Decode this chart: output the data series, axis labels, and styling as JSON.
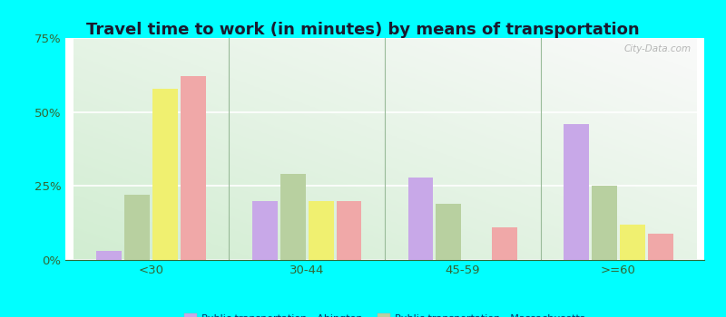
{
  "title": "Travel time to work (in minutes) by means of transportation",
  "categories": [
    "<30",
    "30-44",
    "45-59",
    ">=60"
  ],
  "series": {
    "Public transportation - Abington": [
      3,
      20,
      28,
      46
    ],
    "Public transportation - Massachusetts": [
      22,
      29,
      19,
      25
    ],
    "Other means - Abington": [
      58,
      20,
      0,
      12
    ],
    "Other means - Massachusetts": [
      62,
      20,
      11,
      9
    ]
  },
  "colors": {
    "Public transportation - Abington": "#c8a8e8",
    "Public transportation - Massachusetts": "#b8d0a0",
    "Other means - Abington": "#f0f070",
    "Other means - Massachusetts": "#f0a8a8"
  },
  "ylim": [
    0,
    75
  ],
  "yticks": [
    0,
    25,
    50,
    75
  ],
  "ytick_labels": [
    "0%",
    "25%",
    "50%",
    "75%"
  ],
  "outer_background": "#00ffff",
  "title_fontsize": 13,
  "title_color": "#1a1a2e",
  "tick_color": "#336633",
  "watermark": "City-Data.com",
  "grid_color": "#ccddcc",
  "divider_color": "#99bb99"
}
